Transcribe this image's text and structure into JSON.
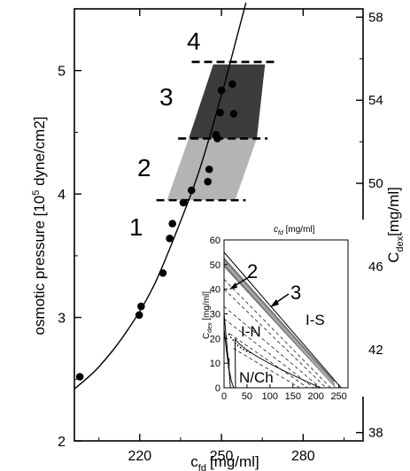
{
  "chart_data": [
    {
      "type": "scatter",
      "xlabel_main": "c",
      "xlabel_sub": "fd",
      "xlabel_unit": "[mg/ml]",
      "ylabel_main": "osmotic pressure [10",
      "ylabel_sup": "5",
      "ylabel_unit": " dyne/cm2]",
      "y2label_main": "C",
      "y2label_sub": "dex",
      "y2label_unit": "[mg/ml]",
      "xlim": [
        196,
        302
      ],
      "ylim": [
        2,
        5.5
      ],
      "xticks": [
        "220",
        "250",
        "280"
      ],
      "yticks": [
        "2",
        "3",
        "4",
        "5"
      ],
      "y2lim": [
        37.6,
        58.4
      ],
      "y2ticks": [
        "38",
        "42",
        "46",
        "50",
        "54",
        "58"
      ],
      "data_points": [
        {
          "x": 198,
          "y": 2.52
        },
        {
          "x": 219.8,
          "y": 3.02
        },
        {
          "x": 220.5,
          "y": 3.09
        },
        {
          "x": 228.5,
          "y": 3.36
        },
        {
          "x": 231,
          "y": 3.64
        },
        {
          "x": 232,
          "y": 3.76
        },
        {
          "x": 236,
          "y": 3.93
        },
        {
          "x": 239,
          "y": 4.03
        },
        {
          "x": 245,
          "y": 4.1
        },
        {
          "x": 245.5,
          "y": 4.2
        },
        {
          "x": 248.5,
          "y": 4.45
        },
        {
          "x": 248,
          "y": 4.48
        },
        {
          "x": 249.5,
          "y": 4.66
        },
        {
          "x": 250,
          "y": 4.84
        },
        {
          "x": 254,
          "y": 4.89
        },
        {
          "x": 254.5,
          "y": 4.65
        }
      ],
      "fit_curve": [
        [
          196,
          2.42
        ],
        [
          205,
          2.6
        ],
        [
          215,
          2.88
        ],
        [
          225,
          3.25
        ],
        [
          235,
          3.78
        ],
        [
          242,
          4.2
        ],
        [
          250,
          4.8
        ],
        [
          256,
          5.3
        ],
        [
          259,
          5.55
        ]
      ],
      "regions": [
        {
          "label": "2",
          "fill": "#b4b4b4",
          "y_bottom": 3.95,
          "y_top": 4.45,
          "x_bottom": [
            230,
            255
          ],
          "x_top": [
            238,
            263
          ]
        },
        {
          "label": "3",
          "fill": "#3c3c3c",
          "y_bottom": 4.45,
          "y_top": 5.05,
          "x_bottom": [
            238,
            263
          ],
          "x_top": [
            247,
            266
          ]
        }
      ],
      "boundaries": [
        {
          "label": "1",
          "y": 3.95,
          "x_range": [
            230,
            255
          ]
        },
        {
          "label": "",
          "y": 4.45,
          "x_range": [
            238,
            263
          ]
        },
        {
          "label": "4",
          "y": 5.07,
          "x_range": [
            243,
            266
          ]
        }
      ],
      "annotations": [
        "1",
        "2",
        "3",
        "4"
      ]
    },
    {
      "type": "line",
      "inset": true,
      "xlabel": "c",
      "xlabel_sub": "fd",
      "xlabel_unit": " [mg/ml]",
      "ylabel": "C",
      "ylabel_sub": "dex",
      "ylabel_unit": " [mg/ml]",
      "xlim": [
        0,
        270
      ],
      "ylim": [
        0,
        60
      ],
      "xticks": [
        "0",
        "50",
        "100",
        "150",
        "200",
        "250"
      ],
      "yticks": [
        "0",
        "10",
        "20",
        "30",
        "40",
        "50",
        "60"
      ],
      "phase_labels": [
        "I-S",
        "I-N",
        "I",
        "N/Ch"
      ],
      "arrow_labels": [
        "2",
        "3"
      ],
      "band": {
        "x": [
          0,
          240
        ],
        "y_top": [
          53,
          3
        ],
        "y_bottom": [
          49,
          0
        ]
      }
    }
  ]
}
